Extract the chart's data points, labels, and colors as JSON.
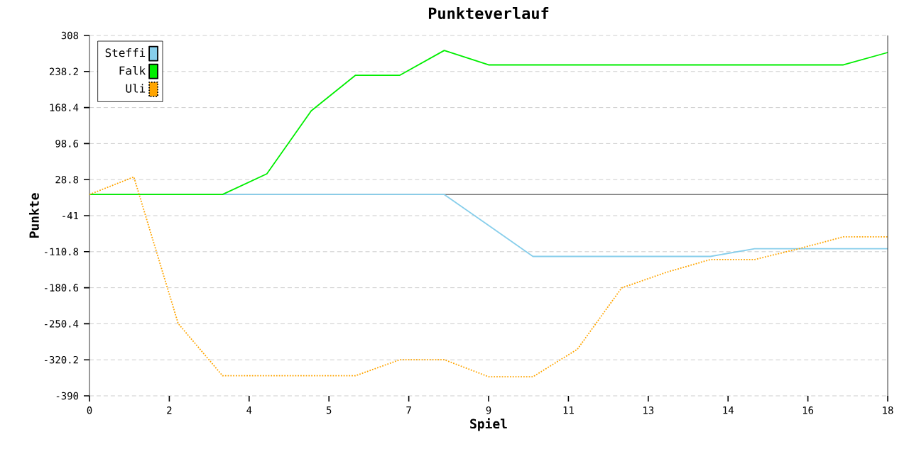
{
  "chart_data": {
    "type": "line",
    "title": "Punkteverlauf",
    "xlabel": "Spiel",
    "ylabel": "Punkte",
    "xlim": [
      0,
      18
    ],
    "ylim": [
      -390,
      308
    ],
    "xticks": [
      {
        "value": 0,
        "label": "0"
      },
      {
        "value": 1.8,
        "label": "2"
      },
      {
        "value": 3.6,
        "label": "4"
      },
      {
        "value": 5.4,
        "label": "5"
      },
      {
        "value": 7.2,
        "label": "7"
      },
      {
        "value": 9,
        "label": "9"
      },
      {
        "value": 10.8,
        "label": "11"
      },
      {
        "value": 12.6,
        "label": "13"
      },
      {
        "value": 14.4,
        "label": "14"
      },
      {
        "value": 16.2,
        "label": "16"
      },
      {
        "value": 18,
        "label": "18"
      }
    ],
    "yticks": [
      -390,
      -320.2,
      -250.4,
      -180.6,
      -110.8,
      -41,
      28.8,
      98.6,
      168.4,
      238.2,
      308
    ],
    "grid": "y",
    "legend": "top left",
    "marker": "none",
    "x": [
      0,
      1,
      2,
      3,
      4,
      5,
      6,
      7,
      8,
      9,
      10,
      11,
      12,
      13,
      14,
      15,
      16,
      17,
      18
    ],
    "series": [
      {
        "name": "Steffi",
        "color": "#87ceeb",
        "line_style": "solid",
        "values": [
          null,
          null,
          null,
          0,
          0,
          0,
          0,
          0,
          0,
          -60,
          -120,
          -120,
          -120,
          -120,
          -120,
          -105,
          -105,
          -105,
          -105
        ]
      },
      {
        "name": "Falk",
        "color": "#00ee00",
        "line_style": "solid",
        "values": [
          0,
          0,
          0,
          0,
          40,
          162,
          231,
          231,
          279,
          251,
          251,
          251,
          251,
          251,
          251,
          251,
          251,
          251,
          275
        ]
      },
      {
        "name": "Uli",
        "color": "#ffa500",
        "line_style": "dotted",
        "values": [
          0,
          34,
          -250,
          -351,
          -351,
          -351,
          -351,
          -320,
          -320,
          -353,
          -353,
          -300,
          -181,
          -151,
          -126,
          -126,
          -105,
          -82,
          -82
        ]
      }
    ]
  }
}
